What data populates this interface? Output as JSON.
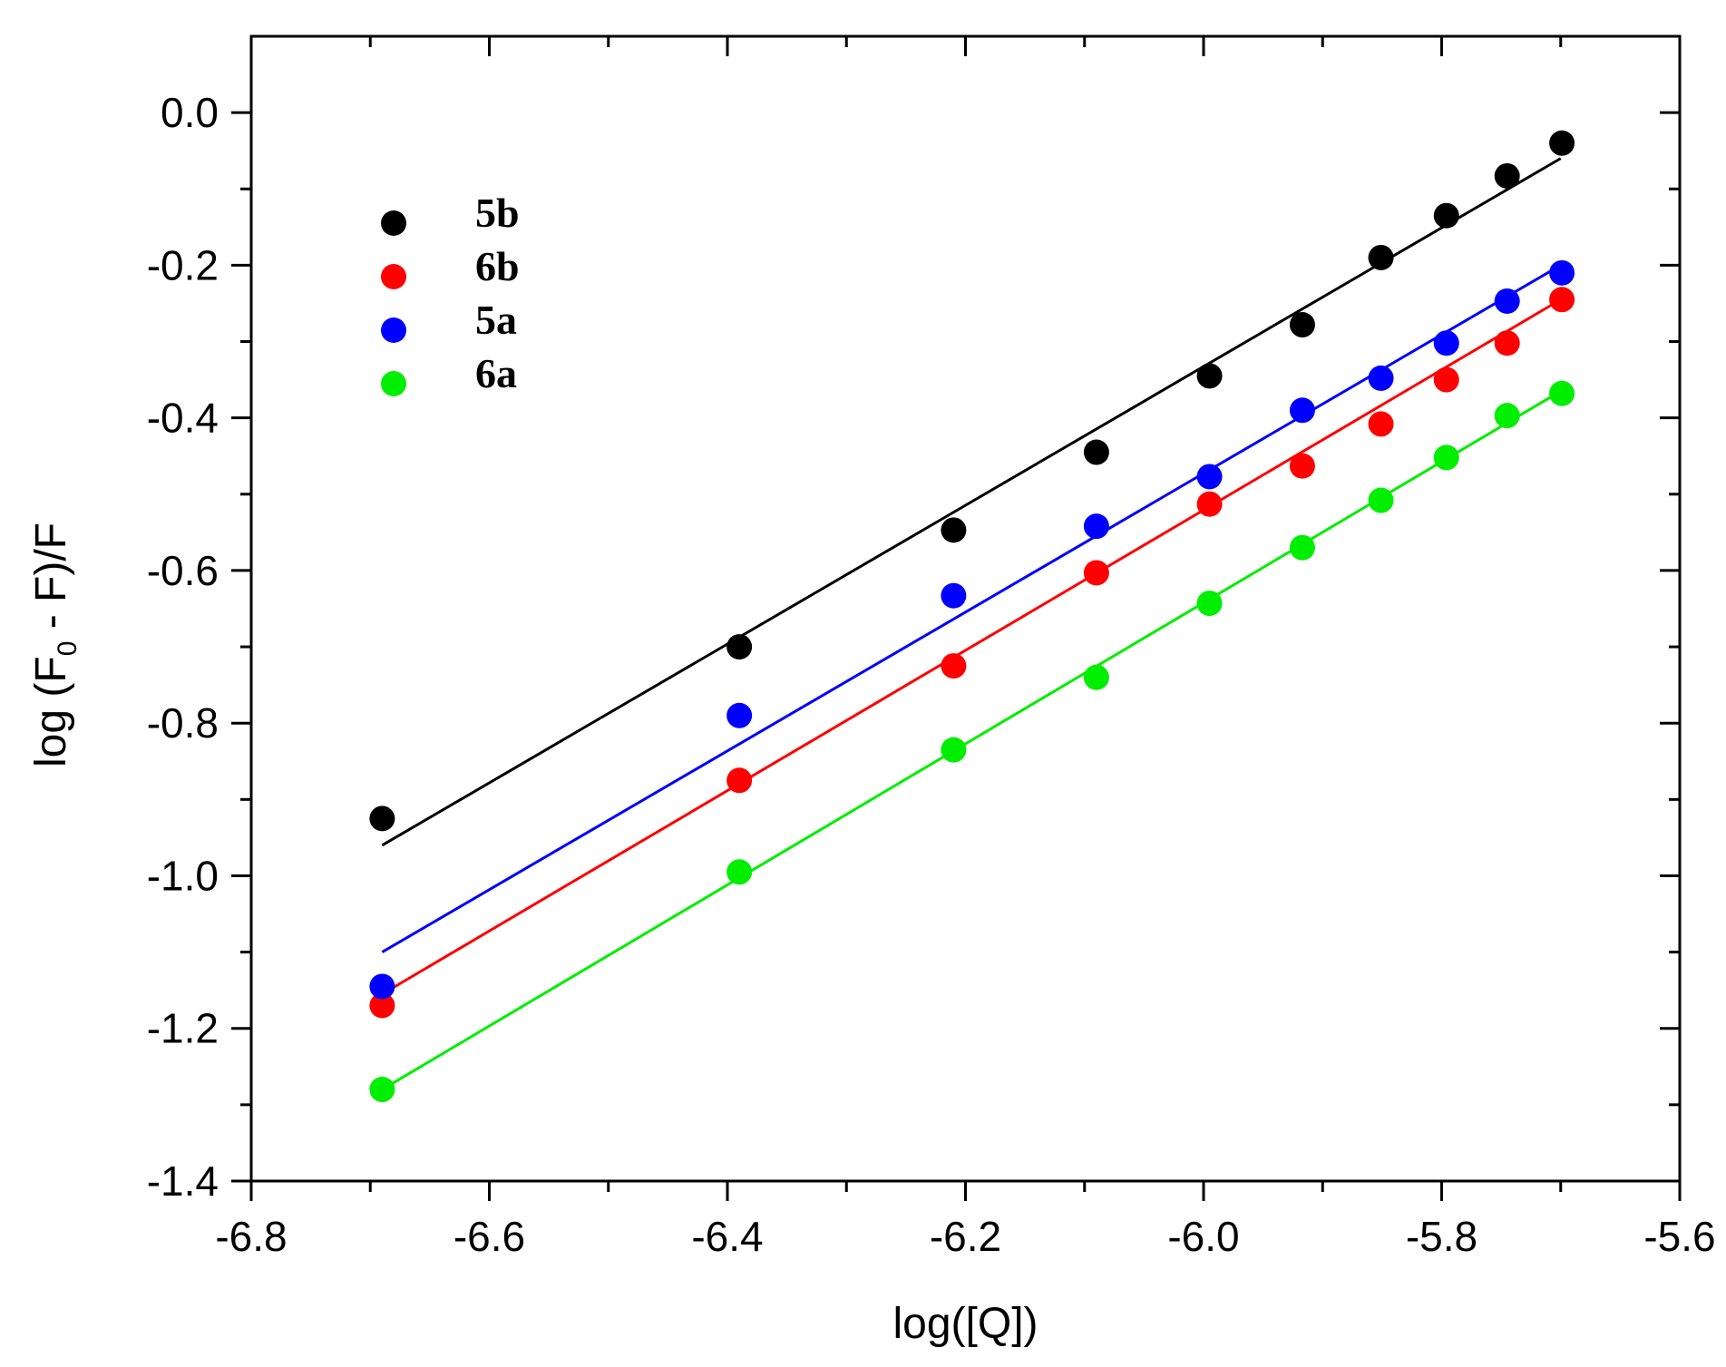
{
  "chart_data": {
    "type": "scatter",
    "xlabel": "log([Q])",
    "ylabel_parts": {
      "prefix": "log (F",
      "subscript": "0",
      "suffix": " - F)/F"
    },
    "xlim": [
      -6.8,
      -5.6
    ],
    "ylim": [
      -1.4,
      0.1
    ],
    "x_ticks": [
      -6.8,
      -6.6,
      -6.4,
      -6.2,
      -6.0,
      -5.8,
      -5.6
    ],
    "x_tick_labels": [
      "-6.8",
      "-6.6",
      "-6.4",
      "-6.2",
      "-6.0",
      "-5.8",
      "-5.6"
    ],
    "y_ticks": [
      -1.4,
      -1.2,
      -1.0,
      -0.8,
      -0.6,
      -0.4,
      -0.2,
      0.0
    ],
    "y_tick_labels": [
      "-1.4",
      "-1.2",
      "-1.0",
      "-0.8",
      "-0.6",
      "-0.4",
      "-0.2",
      "0.0"
    ],
    "legend_position": "top-left",
    "series": [
      {
        "name": "5b",
        "color": "#000000",
        "x": [
          -6.69,
          -6.39,
          -6.21,
          -6.09,
          -5.995,
          -5.917,
          -5.851,
          -5.796,
          -5.745,
          -5.699
        ],
        "y": [
          -0.925,
          -0.7,
          -0.547,
          -0.445,
          -0.345,
          -0.278,
          -0.19,
          -0.135,
          -0.083,
          -0.04
        ],
        "fit": {
          "x": [
            -6.69,
            -5.7
          ],
          "y": [
            -0.96,
            -0.06
          ]
        }
      },
      {
        "name": "6b",
        "color": "#ff0000",
        "x": [
          -6.69,
          -6.39,
          -6.21,
          -6.09,
          -5.995,
          -5.917,
          -5.851,
          -5.796,
          -5.745,
          -5.699
        ],
        "y": [
          -1.17,
          -0.875,
          -0.725,
          -0.603,
          -0.513,
          -0.463,
          -0.408,
          -0.35,
          -0.302,
          -0.245
        ],
        "fit": {
          "x": [
            -6.69,
            -5.7
          ],
          "y": [
            -1.155,
            -0.245
          ]
        }
      },
      {
        "name": "5a",
        "color": "#0000ff",
        "x": [
          -6.69,
          -6.39,
          -6.21,
          -6.09,
          -5.995,
          -5.917,
          -5.851,
          -5.796,
          -5.745,
          -5.699
        ],
        "y": [
          -1.145,
          -0.79,
          -0.633,
          -0.542,
          -0.477,
          -0.39,
          -0.348,
          -0.302,
          -0.247,
          -0.21
        ],
        "fit": {
          "x": [
            -6.69,
            -5.7
          ],
          "y": [
            -1.1,
            -0.2
          ]
        }
      },
      {
        "name": "6a",
        "color": "#00ee00",
        "x": [
          -6.69,
          -6.39,
          -6.21,
          -6.09,
          -5.995,
          -5.917,
          -5.851,
          -5.796,
          -5.745,
          -5.699
        ],
        "y": [
          -1.28,
          -0.995,
          -0.835,
          -0.74,
          -0.643,
          -0.57,
          -0.508,
          -0.452,
          -0.397,
          -0.368
        ],
        "fit": {
          "x": [
            -6.69,
            -5.7
          ],
          "y": [
            -1.28,
            -0.365
          ]
        }
      }
    ]
  }
}
